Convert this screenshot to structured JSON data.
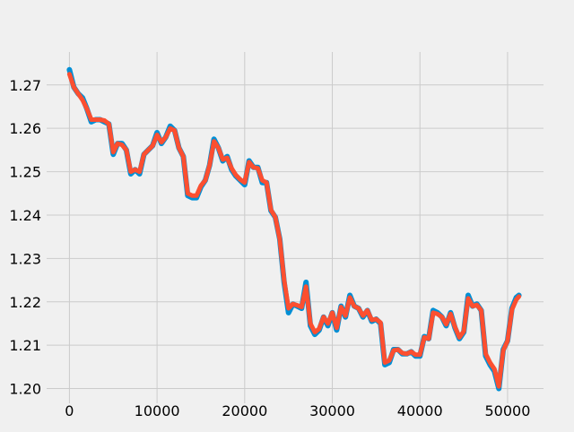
{
  "chart_data": {
    "type": "line",
    "title": "",
    "xlabel": "",
    "ylabel": "",
    "xlim": [
      -2600,
      54100
    ],
    "ylim": [
      1.1966,
      1.2776
    ],
    "grid": true,
    "x_ticks": [
      0,
      10000,
      20000,
      30000,
      40000,
      50000
    ],
    "x_tick_labels": [
      "0",
      "10000",
      "20000",
      "30000",
      "40000",
      "50000"
    ],
    "y_ticks": [
      1.2,
      1.21,
      1.22,
      1.23,
      1.24,
      1.25,
      1.26,
      1.27
    ],
    "y_tick_labels": [
      "1.20",
      "1.21",
      "1.22",
      "1.23",
      "1.24",
      "1.25",
      "1.26",
      "1.27"
    ],
    "series": [
      {
        "color": "#008fd5",
        "x": [
          0,
          500,
          1000,
          1500,
          2000,
          2500,
          3000,
          3500,
          4000,
          4500,
          5000,
          5500,
          6000,
          6500,
          7000,
          7500,
          8000,
          8500,
          9000,
          9500,
          10000,
          10500,
          11000,
          11500,
          12000,
          12500,
          13000,
          13500,
          14000,
          14500,
          15000,
          15500,
          16000,
          16500,
          17000,
          17500,
          18000,
          18500,
          19000,
          19500,
          20000,
          20500,
          21000,
          21500,
          22000,
          22500,
          23000,
          23500,
          24000,
          24500,
          25000,
          25500,
          26000,
          26500,
          27000,
          27500,
          28000,
          28500,
          29000,
          29500,
          30000,
          30500,
          31000,
          31500,
          32000,
          32500,
          33000,
          33500,
          34000,
          34500,
          35000,
          35500,
          36000,
          36500,
          37000,
          37500,
          38000,
          38500,
          39000,
          39500,
          40000,
          40500,
          41000,
          41500,
          42000,
          42500,
          43000,
          43500,
          44000,
          44500,
          45000,
          45500,
          46000,
          46500,
          47000,
          47500,
          48000,
          48500,
          49000,
          49500,
          50000,
          50500,
          51000,
          51300
        ],
        "y": [
          1.2735,
          1.2695,
          1.268,
          1.267,
          1.2645,
          1.2615,
          1.262,
          1.262,
          1.2615,
          1.261,
          1.254,
          1.2565,
          1.2565,
          1.255,
          1.2495,
          1.2505,
          1.2495,
          1.254,
          1.255,
          1.256,
          1.259,
          1.2565,
          1.258,
          1.2605,
          1.2595,
          1.2555,
          1.2535,
          1.2445,
          1.244,
          1.244,
          1.2465,
          1.248,
          1.2515,
          1.2575,
          1.2555,
          1.2525,
          1.2535,
          1.2505,
          1.249,
          1.248,
          1.247,
          1.2525,
          1.251,
          1.251,
          1.2475,
          1.2475,
          1.241,
          1.2395,
          1.2345,
          1.2245,
          1.2175,
          1.2195,
          1.219,
          1.2185,
          1.2245,
          1.2145,
          1.2125,
          1.2135,
          1.2165,
          1.2145,
          1.2175,
          1.2135,
          1.219,
          1.2165,
          1.2215,
          1.219,
          1.2185,
          1.2165,
          1.218,
          1.2155,
          1.216,
          1.215,
          1.2055,
          1.206,
          1.209,
          1.209,
          1.208,
          1.208,
          1.2085,
          1.2075,
          1.2075,
          1.212,
          1.2115,
          1.218,
          1.2175,
          1.2165,
          1.2145,
          1.2175,
          1.214,
          1.2115,
          1.213,
          1.2215,
          1.219,
          1.2195,
          1.218,
          1.2075,
          1.2055,
          1.204,
          1.2,
          1.209,
          1.211,
          1.2185,
          1.221,
          1.2215
        ]
      },
      {
        "color": "#fc4f30",
        "x": [
          0,
          500,
          1000,
          1500,
          2000,
          2500,
          3000,
          3500,
          4000,
          4500,
          5000,
          5500,
          6000,
          6500,
          7000,
          7500,
          8000,
          8500,
          9000,
          9500,
          10000,
          10500,
          11000,
          11500,
          12000,
          12500,
          13000,
          13500,
          14000,
          14500,
          15000,
          15500,
          16000,
          16500,
          17000,
          17500,
          18000,
          18500,
          19000,
          19500,
          20000,
          20500,
          21000,
          21500,
          22000,
          22500,
          23000,
          23500,
          24000,
          24500,
          25000,
          25500,
          26000,
          26500,
          27000,
          27500,
          28000,
          28500,
          29000,
          29500,
          30000,
          30500,
          31000,
          31500,
          32000,
          32500,
          33000,
          33500,
          34000,
          34500,
          35000,
          35500,
          36000,
          36500,
          37000,
          37500,
          38000,
          38500,
          39000,
          39500,
          40000,
          40500,
          41000,
          41500,
          42000,
          42500,
          43000,
          43500,
          44000,
          44500,
          45000,
          45500,
          46000,
          46500,
          47000,
          47500,
          48000,
          48500,
          49000,
          49500,
          50000,
          50500,
          51000,
          51300
        ],
        "y": [
          1.2725,
          1.2695,
          1.268,
          1.2665,
          1.2645,
          1.262,
          1.262,
          1.262,
          1.2618,
          1.261,
          1.2545,
          1.2565,
          1.2562,
          1.255,
          1.25,
          1.2505,
          1.25,
          1.254,
          1.255,
          1.256,
          1.2585,
          1.2568,
          1.258,
          1.26,
          1.2595,
          1.2555,
          1.2535,
          1.245,
          1.2445,
          1.2445,
          1.2468,
          1.248,
          1.2515,
          1.257,
          1.2555,
          1.2528,
          1.2532,
          1.2508,
          1.2492,
          1.2482,
          1.2475,
          1.2522,
          1.251,
          1.2508,
          1.248,
          1.2475,
          1.2412,
          1.2395,
          1.2345,
          1.225,
          1.2185,
          1.2195,
          1.2192,
          1.2188,
          1.2235,
          1.215,
          1.213,
          1.2138,
          1.2165,
          1.215,
          1.2175,
          1.214,
          1.2188,
          1.2168,
          1.221,
          1.219,
          1.2185,
          1.2168,
          1.218,
          1.2158,
          1.216,
          1.2152,
          1.206,
          1.2065,
          1.2088,
          1.209,
          1.2082,
          1.208,
          1.2085,
          1.2078,
          1.2078,
          1.2118,
          1.2115,
          1.2175,
          1.2172,
          1.2165,
          1.2148,
          1.2172,
          1.2142,
          1.2118,
          1.2132,
          1.2208,
          1.219,
          1.2193,
          1.218,
          1.208,
          1.206,
          1.2045,
          1.2005,
          1.2088,
          1.211,
          1.2182,
          1.2205,
          1.2212
        ]
      }
    ]
  }
}
